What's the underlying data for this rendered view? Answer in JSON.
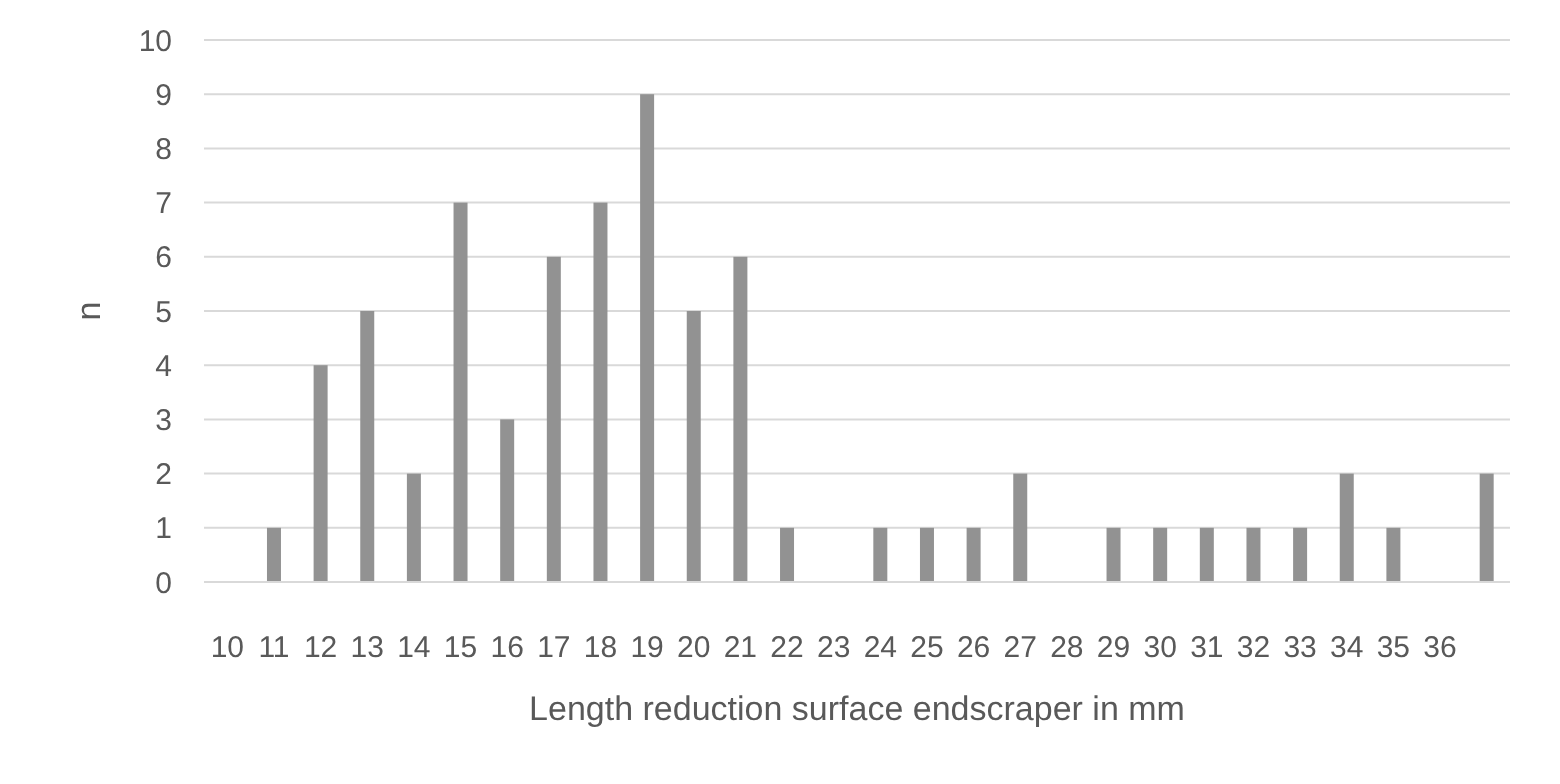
{
  "chart_data": {
    "type": "bar",
    "xlabel": "Length reduction surface endscraper in mm",
    "ylabel": "n",
    "categories": [
      "10",
      "11",
      "12",
      "13",
      "14",
      "15",
      "16",
      "17",
      "18",
      "19",
      "20",
      "21",
      "22",
      "23",
      "24",
      "25",
      "26",
      "27",
      "28",
      "29",
      "30",
      "31",
      "32",
      "33",
      "34",
      "35",
      "36",
      null
    ],
    "values": [
      0,
      1,
      4,
      5,
      2,
      7,
      3,
      6,
      7,
      9,
      5,
      6,
      1,
      0,
      1,
      1,
      1,
      2,
      0,
      1,
      1,
      1,
      1,
      1,
      2,
      1,
      0,
      2
    ],
    "color": "#929292",
    "ylim": [
      0,
      10
    ],
    "yticks": [
      0,
      1,
      2,
      3,
      4,
      5,
      6,
      7,
      8,
      9,
      10
    ],
    "grid": "y"
  }
}
